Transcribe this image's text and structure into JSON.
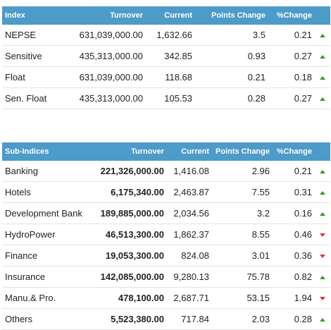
{
  "index_table": {
    "headers": [
      "Index",
      "Turnover",
      "Current",
      "Points Change",
      "%Change"
    ],
    "rows": [
      {
        "name": "NEPSE",
        "turnover": "631,039,000.00",
        "current": "1,632.66",
        "points": "3.5",
        "pct": "0.21",
        "dir": "up"
      },
      {
        "name": "Sensitive",
        "turnover": "435,313,000.00",
        "current": "342.85",
        "points": "0.93",
        "pct": "0.27",
        "dir": "up"
      },
      {
        "name": "Float",
        "turnover": "631,039,000.00",
        "current": "118.68",
        "points": "0.21",
        "pct": "0.18",
        "dir": "up"
      },
      {
        "name": "Sen. Float",
        "turnover": "435,313,000.00",
        "current": "105.53",
        "points": "0.28",
        "pct": "0.27",
        "dir": "up"
      }
    ]
  },
  "sub_indices_table": {
    "headers": [
      "Sub-Indices",
      "Turnover",
      "Current",
      "Points Change",
      "%Change"
    ],
    "rows": [
      {
        "name": "Banking",
        "turnover": "221,326,000.00",
        "current": "1,416.08",
        "points": "2.96",
        "pct": "0.21",
        "dir": "up"
      },
      {
        "name": "Hotels",
        "turnover": "6,175,340.00",
        "current": "2,463.87",
        "points": "7.55",
        "pct": "0.31",
        "dir": "up"
      },
      {
        "name": "Development Bank",
        "turnover": "189,885,000.00",
        "current": "2,034.56",
        "points": "3.2",
        "pct": "0.16",
        "dir": "up"
      },
      {
        "name": "HydroPower",
        "turnover": "46,513,300.00",
        "current": "1,862.37",
        "points": "8.55",
        "pct": "0.46",
        "dir": "down"
      },
      {
        "name": "Finance",
        "turnover": "19,053,300.00",
        "current": "824.08",
        "points": "3.01",
        "pct": "0.36",
        "dir": "down"
      },
      {
        "name": "Insurance",
        "turnover": "142,085,000.00",
        "current": "9,280.13",
        "points": "75.78",
        "pct": "0.82",
        "dir": "up"
      },
      {
        "name": "Manu.& Pro.",
        "turnover": "478,100.00",
        "current": "2,687.71",
        "points": "53.15",
        "pct": "1.94",
        "dir": "down"
      },
      {
        "name": "Others",
        "turnover": "5,523,380.00",
        "current": "717.84",
        "points": "2.03",
        "pct": "0.28",
        "dir": "up"
      }
    ]
  },
  "colors": {
    "header_bg": "#4c9bc9",
    "up": "#3a9a27",
    "down": "#d23b3b"
  },
  "icons": {
    "up": "triangle-up-icon",
    "down": "triangle-down-icon"
  }
}
